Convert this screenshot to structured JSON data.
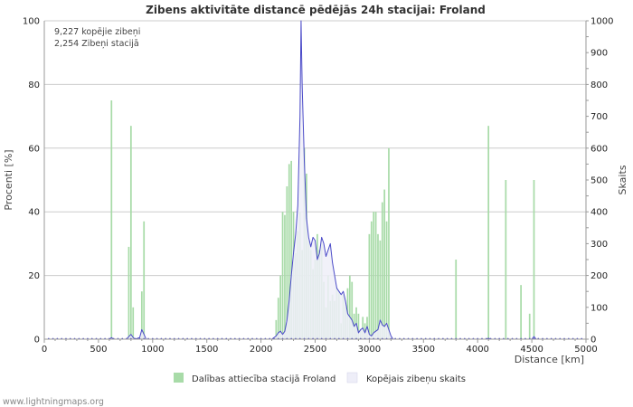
{
  "chart_data": {
    "type": "bar",
    "title": "Zibens aktivitāte distancē pēdējās 24h stacijai: Froland",
    "stats": [
      "9,227 kopējie zibeņi",
      "2,254 Zibeņi stacijā"
    ],
    "xlabel": "Distance   [km]",
    "ylabel_left": "Procenti   [%]",
    "ylabel_right": "Skaits",
    "xlim": [
      0,
      5000
    ],
    "ylim_left": [
      0,
      100
    ],
    "ylim_right": [
      0,
      1000
    ],
    "xticks": [
      0,
      500,
      1000,
      1500,
      2000,
      2500,
      3000,
      3500,
      4000,
      4500,
      5000
    ],
    "yticks_left": [
      0,
      20,
      40,
      60,
      80,
      100
    ],
    "yticks_right": [
      0,
      100,
      200,
      300,
      400,
      500,
      600,
      700,
      800,
      900,
      1000
    ],
    "bin_width": 20,
    "series": [
      {
        "name": "Dalības attiecība stacijā Froland",
        "kind": "bar",
        "axis": "left",
        "color": "#a8dba8",
        "points": [
          [
            620,
            75
          ],
          [
            780,
            29
          ],
          [
            800,
            67
          ],
          [
            820,
            10
          ],
          [
            900,
            15
          ],
          [
            920,
            37
          ],
          [
            2140,
            6
          ],
          [
            2160,
            13
          ],
          [
            2180,
            20
          ],
          [
            2200,
            40
          ],
          [
            2220,
            39
          ],
          [
            2240,
            48
          ],
          [
            2260,
            55
          ],
          [
            2280,
            56
          ],
          [
            2300,
            40
          ],
          [
            2320,
            27
          ],
          [
            2340,
            34
          ],
          [
            2360,
            40
          ],
          [
            2380,
            28
          ],
          [
            2400,
            60
          ],
          [
            2420,
            52
          ],
          [
            2440,
            31
          ],
          [
            2460,
            28
          ],
          [
            2480,
            22
          ],
          [
            2500,
            25
          ],
          [
            2520,
            33
          ],
          [
            2540,
            28
          ],
          [
            2560,
            30
          ],
          [
            2580,
            18
          ],
          [
            2600,
            10
          ],
          [
            2620,
            20
          ],
          [
            2640,
            12
          ],
          [
            2660,
            14
          ],
          [
            2680,
            12
          ],
          [
            2700,
            16
          ],
          [
            2720,
            15
          ],
          [
            2740,
            5
          ],
          [
            2760,
            14
          ],
          [
            2780,
            10
          ],
          [
            2800,
            16
          ],
          [
            2820,
            20
          ],
          [
            2840,
            18
          ],
          [
            2860,
            8
          ],
          [
            2880,
            10
          ],
          [
            2900,
            8
          ],
          [
            2920,
            3
          ],
          [
            2940,
            7
          ],
          [
            2960,
            5
          ],
          [
            2980,
            7
          ],
          [
            3000,
            33
          ],
          [
            3020,
            37
          ],
          [
            3040,
            40
          ],
          [
            3060,
            40
          ],
          [
            3080,
            33
          ],
          [
            3100,
            31
          ],
          [
            3120,
            43
          ],
          [
            3140,
            47
          ],
          [
            3160,
            37
          ],
          [
            3180,
            60
          ],
          [
            3800,
            25
          ],
          [
            4100,
            67
          ],
          [
            4260,
            50
          ],
          [
            4400,
            17
          ],
          [
            4480,
            8
          ],
          [
            4520,
            50
          ]
        ]
      },
      {
        "name": "Kopējais zibeņu skaits",
        "kind": "line",
        "axis": "right",
        "color": "#4a4ac8",
        "fill": "#eeeef8",
        "points": [
          [
            0,
            0
          ],
          [
            600,
            0
          ],
          [
            620,
            5
          ],
          [
            640,
            0
          ],
          [
            700,
            0
          ],
          [
            760,
            0
          ],
          [
            780,
            8
          ],
          [
            800,
            15
          ],
          [
            820,
            5
          ],
          [
            840,
            0
          ],
          [
            880,
            5
          ],
          [
            900,
            30
          ],
          [
            920,
            15
          ],
          [
            940,
            0
          ],
          [
            1000,
            0
          ],
          [
            2100,
            0
          ],
          [
            2140,
            10
          ],
          [
            2160,
            20
          ],
          [
            2180,
            25
          ],
          [
            2200,
            15
          ],
          [
            2220,
            25
          ],
          [
            2240,
            60
          ],
          [
            2260,
            120
          ],
          [
            2280,
            200
          ],
          [
            2300,
            270
          ],
          [
            2320,
            330
          ],
          [
            2340,
            420
          ],
          [
            2360,
            700
          ],
          [
            2370,
            1000
          ],
          [
            2380,
            800
          ],
          [
            2400,
            560
          ],
          [
            2420,
            380
          ],
          [
            2440,
            320
          ],
          [
            2460,
            290
          ],
          [
            2480,
            320
          ],
          [
            2500,
            310
          ],
          [
            2520,
            250
          ],
          [
            2540,
            270
          ],
          [
            2560,
            320
          ],
          [
            2580,
            300
          ],
          [
            2600,
            260
          ],
          [
            2620,
            280
          ],
          [
            2640,
            300
          ],
          [
            2660,
            240
          ],
          [
            2680,
            200
          ],
          [
            2700,
            160
          ],
          [
            2720,
            150
          ],
          [
            2740,
            140
          ],
          [
            2760,
            150
          ],
          [
            2780,
            120
          ],
          [
            2800,
            80
          ],
          [
            2820,
            70
          ],
          [
            2840,
            60
          ],
          [
            2860,
            40
          ],
          [
            2880,
            50
          ],
          [
            2900,
            20
          ],
          [
            2920,
            30
          ],
          [
            2940,
            35
          ],
          [
            2960,
            20
          ],
          [
            2980,
            40
          ],
          [
            3000,
            15
          ],
          [
            3020,
            10
          ],
          [
            3040,
            20
          ],
          [
            3060,
            25
          ],
          [
            3080,
            30
          ],
          [
            3100,
            60
          ],
          [
            3120,
            45
          ],
          [
            3140,
            40
          ],
          [
            3160,
            50
          ],
          [
            3180,
            30
          ],
          [
            3200,
            10
          ],
          [
            3220,
            0
          ],
          [
            3400,
            0
          ],
          [
            4080,
            0
          ],
          [
            4100,
            3
          ],
          [
            4120,
            0
          ],
          [
            4500,
            0
          ],
          [
            4520,
            8
          ],
          [
            4540,
            0
          ],
          [
            5000,
            0
          ]
        ]
      }
    ]
  },
  "legend": {
    "bar_label": "Dalības attiecība stacijā Froland",
    "line_label": "Kopējais zibeņu skaits"
  },
  "footer": "www.lightningmaps.org"
}
